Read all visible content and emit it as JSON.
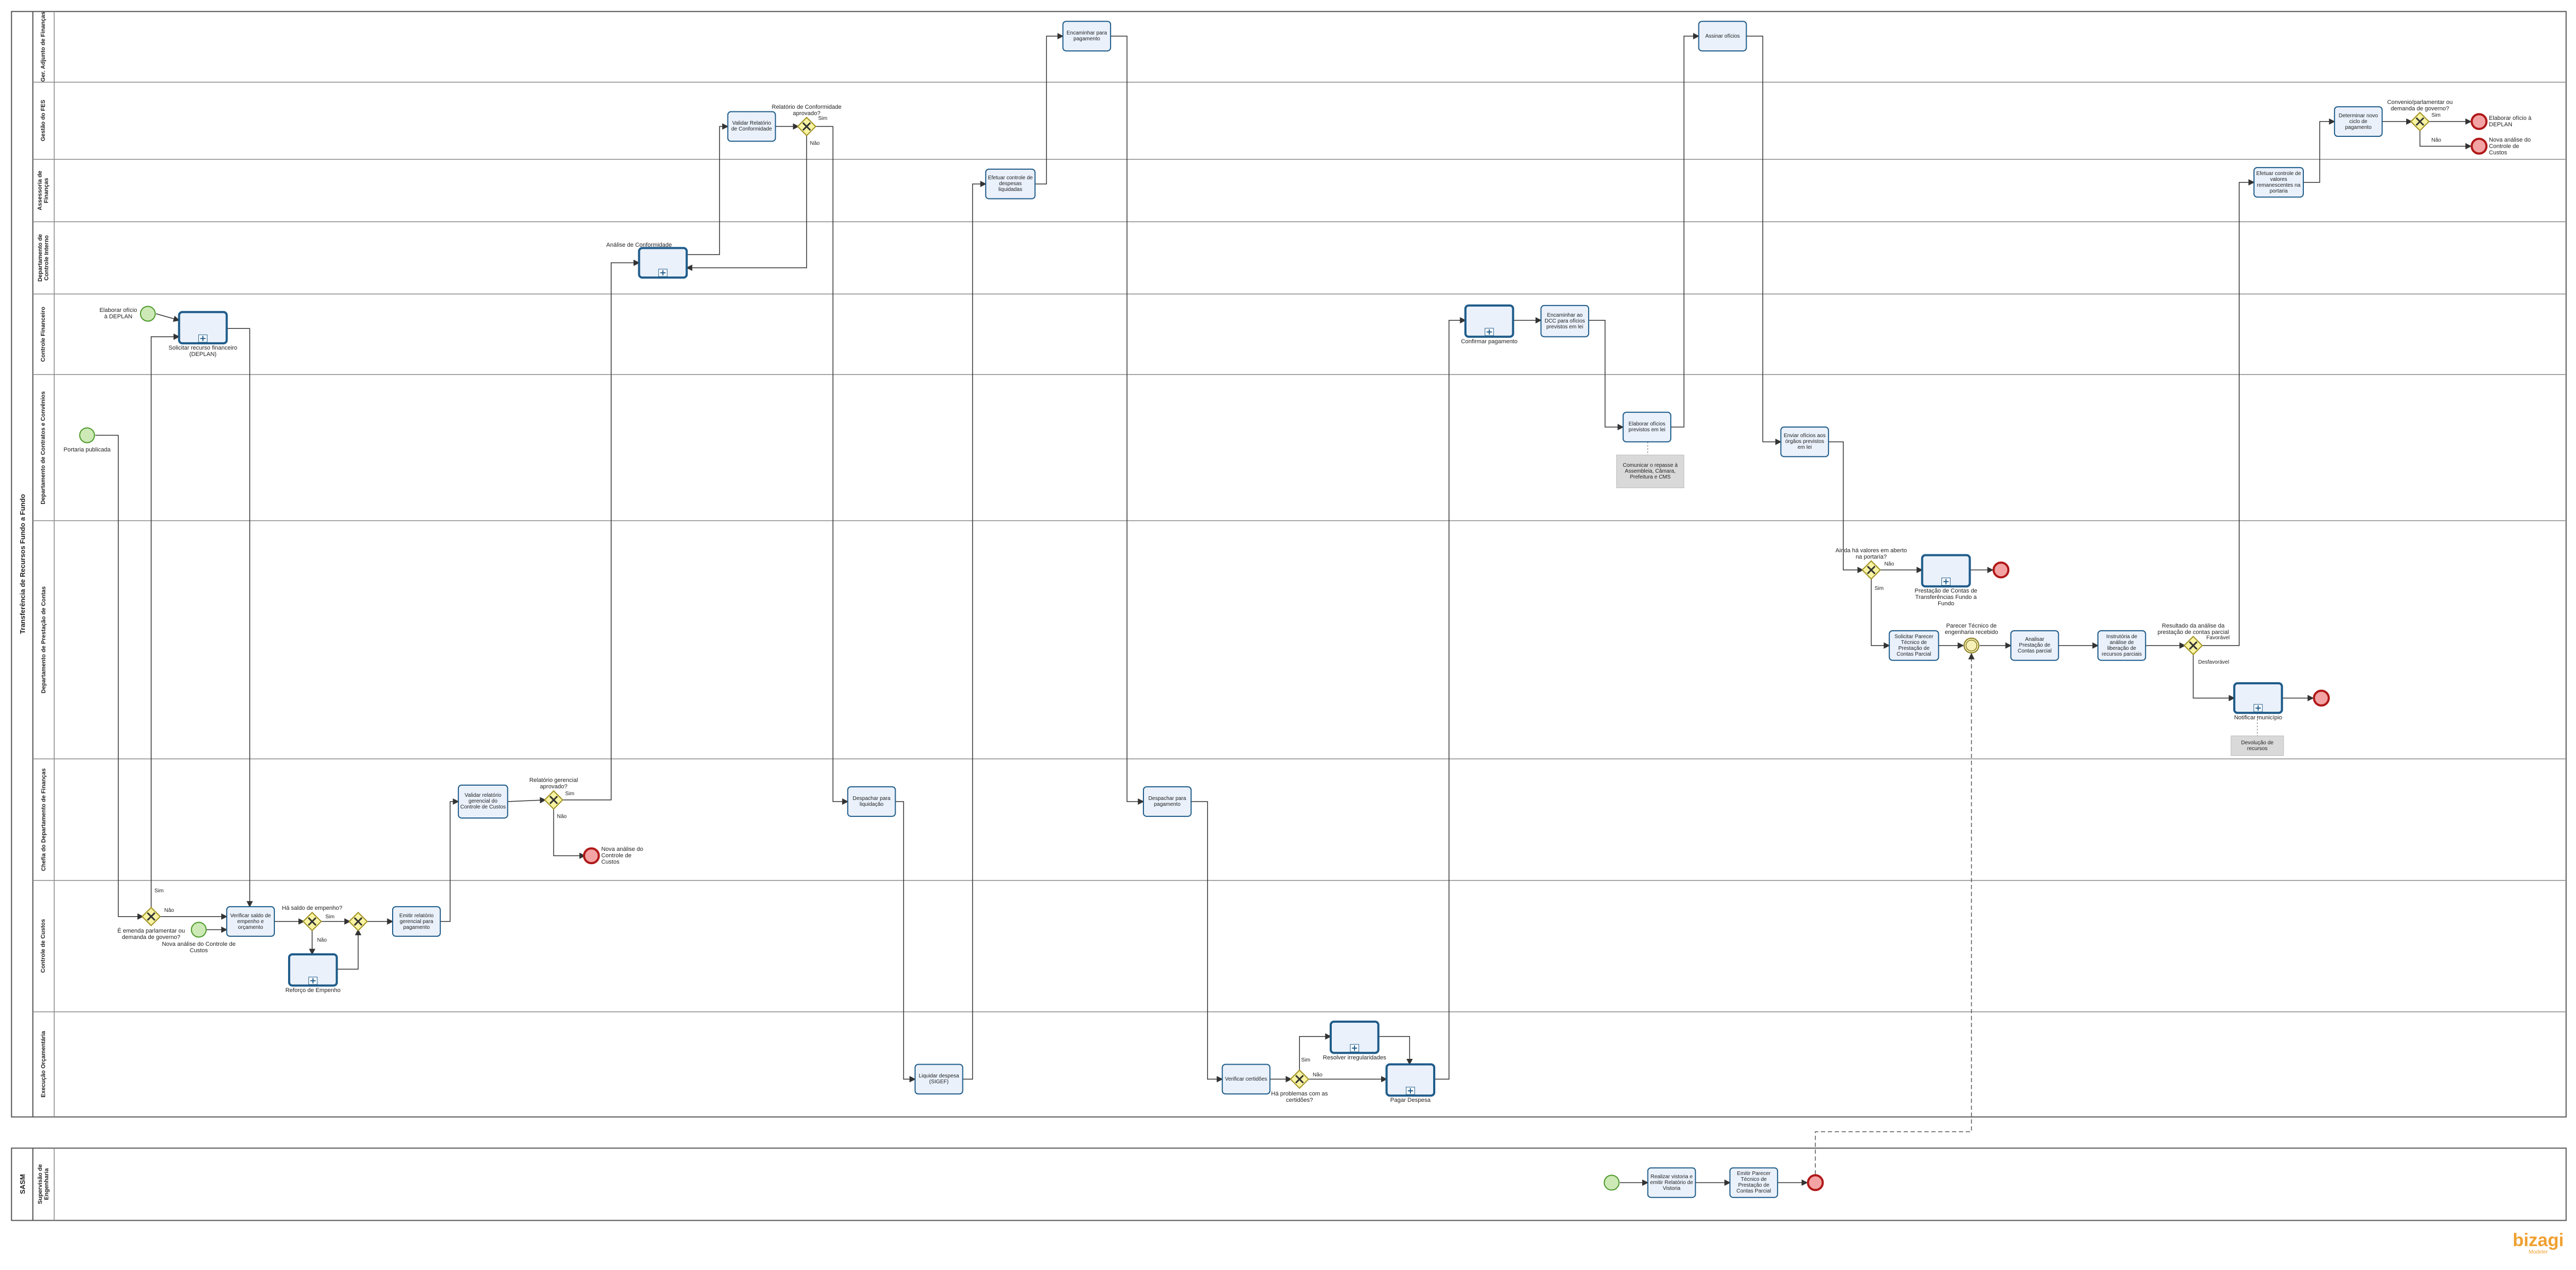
{
  "pools": [
    {
      "name": "Transferência de Recursos Fundo a Fundo",
      "lanes": [
        "Ger. Adjunto de Finanças",
        "Gestão do FES",
        "Assessoria de Finanças",
        "Departamento de Controle Interno",
        "Controle Financeiro",
        "Departamento de Contratos e Convênios",
        "Departamento de Prestação de Contas",
        "Chefia do Departamento de Finanças",
        "Controle de Custos",
        "Execução Orçamentária"
      ]
    },
    {
      "name": "SASM",
      "lanes": [
        "Supervisão de Engenharia"
      ]
    }
  ],
  "nodes": [
    {
      "kind": "task",
      "label": "Encaminhar para pagamento"
    },
    {
      "kind": "task",
      "label": "Assinar ofícios"
    },
    {
      "kind": "task",
      "label": "Validar Relatório de Conformidade"
    },
    {
      "kind": "gateway",
      "label": "Relatório de Conformidade aprovado?"
    },
    {
      "kind": "task",
      "label": "Determinar novo ciclo de pagamento"
    },
    {
      "kind": "gateway",
      "label": "Convenio/parlamentar ou demanda de governo?"
    },
    {
      "kind": "end",
      "label": "Elaborar ofício à DEPLAN"
    },
    {
      "kind": "end",
      "label": "Nova análise do Controle de Custos"
    },
    {
      "kind": "task",
      "label": "Efetuar controle de despesas liquidadas"
    },
    {
      "kind": "task",
      "label": "Efetuar controle de valores remanescentes na portaria"
    },
    {
      "kind": "subprocess",
      "label": "Análise de Conformidade"
    },
    {
      "kind": "start",
      "label": "Elaborar ofício à DEPLAN"
    },
    {
      "kind": "subprocess",
      "label": "Solicitar recurso financeiro (DEPLAN)"
    },
    {
      "kind": "subprocess",
      "label": "Confirmar pagamento"
    },
    {
      "kind": "task",
      "label": "Encaminhar ao DCC para ofícios previstos em lei"
    },
    {
      "kind": "start",
      "label": "Portaria publicada"
    },
    {
      "kind": "task",
      "label": "Elaborar ofícios previstos em lei"
    },
    {
      "kind": "annotation",
      "label": "Comunicar o repasse à Assembleia, Câmara, Prefeitura e CMS"
    },
    {
      "kind": "task",
      "label": "Enviar ofícios aos órgãos previstos em lei"
    },
    {
      "kind": "gateway",
      "label": "Ainda há valores em aberto na portaria?"
    },
    {
      "kind": "subprocess",
      "label": "Prestação de Contas de Transferências Fundo a Fundo"
    },
    {
      "kind": "end"
    },
    {
      "kind": "task",
      "label": "Solicitar Parecer Técnico de Prestação de Contas Parcial"
    },
    {
      "kind": "intermediate",
      "label": "Parecer Técnico de engenharia recebido"
    },
    {
      "kind": "task",
      "label": "Analisar Prestação de Contas parcial"
    },
    {
      "kind": "task",
      "label": "Instrutória de análise de liberação de recursos parciais"
    },
    {
      "kind": "gateway",
      "label": "Resultado da análise da prestação de contas parcial"
    },
    {
      "kind": "subprocess",
      "label": "Notificar município"
    },
    {
      "kind": "end"
    },
    {
      "kind": "annotation",
      "label": "Devolução de recursos"
    },
    {
      "kind": "task",
      "label": "Validar relatório gerencial do Controle de Custos"
    },
    {
      "kind": "gateway",
      "label": "Relatório gerencial aprovado?"
    },
    {
      "kind": "end",
      "label": "Nova análise do Controle de Custos"
    },
    {
      "kind": "task",
      "label": "Despachar para liquidação"
    },
    {
      "kind": "task",
      "label": "Despachar para pagamento"
    },
    {
      "kind": "gateway",
      "label": "É emenda parlamentar ou demanda de governo?"
    },
    {
      "kind": "start",
      "label": "Nova análise do Controle de Custos"
    },
    {
      "kind": "task",
      "label": "Verificar saldo de empenho e orçamento"
    },
    {
      "kind": "gateway",
      "label": "Há saldo de empenho?"
    },
    {
      "kind": "gateway"
    },
    {
      "kind": "subprocess",
      "label": "Reforço de Empenho"
    },
    {
      "kind": "task",
      "label": "Emitir relatório gerencial para pagamento"
    },
    {
      "kind": "task",
      "label": "Liquidar despesa (SIGEF)"
    },
    {
      "kind": "task",
      "label": "Verificar certidões"
    },
    {
      "kind": "gateway",
      "label": "Há problemas com as certidões?"
    },
    {
      "kind": "subprocess",
      "label": "Resolver irregularidades"
    },
    {
      "kind": "subprocess",
      "label": "Pagar Despesa"
    },
    {
      "kind": "start"
    },
    {
      "kind": "task",
      "label": "Realizar vistoria e emitir Relatório de Vistoria"
    },
    {
      "kind": "task",
      "label": "Emitir Parecer Técnico de Prestação de Contas Parcial"
    },
    {
      "kind": "end"
    }
  ],
  "flow_labels": [
    "Sim",
    "Não",
    "Sim",
    "Não",
    "Não",
    "Sim",
    "Favorável",
    "Desfavorável",
    "Sim",
    "Não",
    "Sim",
    "Não",
    "Sim",
    "Não",
    "Sim",
    "Não"
  ],
  "logo": {
    "name": "bizagi",
    "subtitle": "Modeler"
  }
}
